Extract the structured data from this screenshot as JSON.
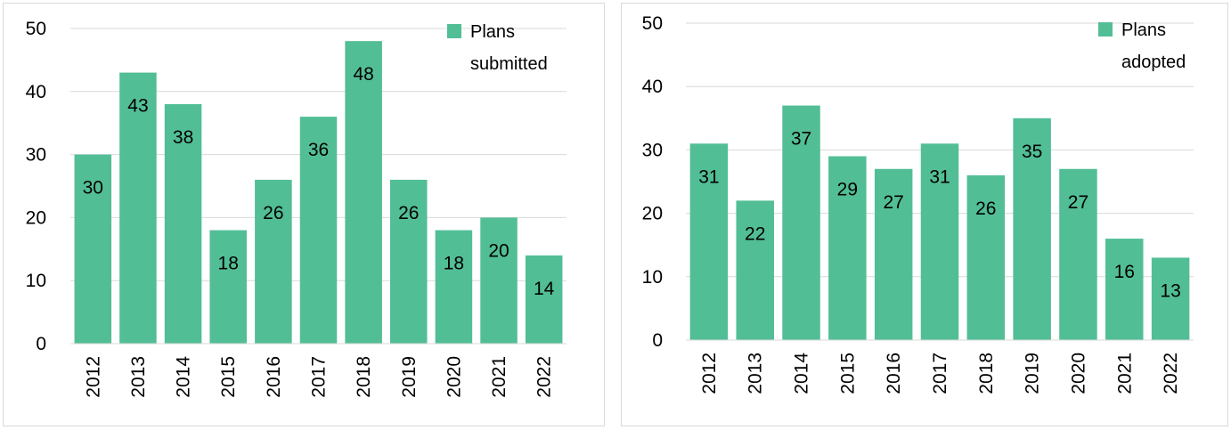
{
  "chart_data": [
    {
      "type": "bar",
      "categories": [
        "2012",
        "2013",
        "2014",
        "2015",
        "2016",
        "2017",
        "2018",
        "2019",
        "2020",
        "2021",
        "2022"
      ],
      "series": [
        {
          "name": "Plans submitted",
          "values": [
            30,
            43,
            38,
            18,
            26,
            36,
            48,
            26,
            18,
            20,
            14
          ]
        }
      ],
      "legend_lines": [
        "Plans",
        "submitted"
      ],
      "legend_position": "top-right",
      "ylim": [
        0,
        50
      ],
      "yticks": [
        "0",
        "10",
        "20",
        "30",
        "40",
        "50"
      ],
      "grid": true,
      "bar_color": "#52be96",
      "data_labels": true
    },
    {
      "type": "bar",
      "categories": [
        "2012",
        "2013",
        "2014",
        "2015",
        "2016",
        "2017",
        "2018",
        "2019",
        "2020",
        "2021",
        "2022"
      ],
      "series": [
        {
          "name": "Plans adopted",
          "values": [
            31,
            22,
            37,
            29,
            27,
            31,
            26,
            35,
            27,
            16,
            13
          ]
        }
      ],
      "legend_lines": [
        "Plans",
        "adopted"
      ],
      "legend_position": "top-right",
      "ylim": [
        0,
        50
      ],
      "yticks": [
        "0",
        "10",
        "20",
        "30",
        "40",
        "50"
      ],
      "grid": true,
      "bar_color": "#52be96",
      "data_labels": true
    }
  ]
}
